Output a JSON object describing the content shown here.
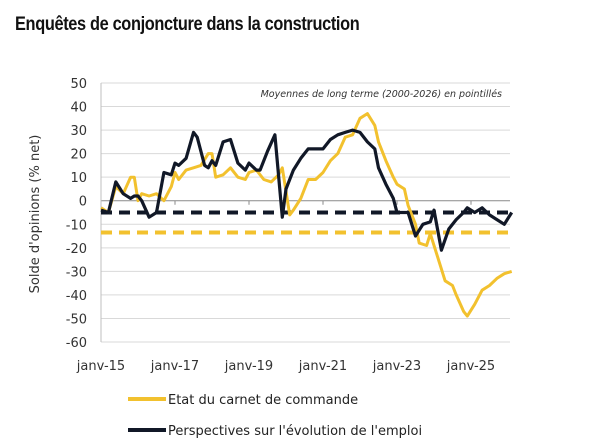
{
  "title": "Enquêtes de conjoncture dans la construction",
  "chart_data": {
    "type": "line",
    "title": "Enquêtes de conjoncture dans la construction",
    "xlabel": "",
    "ylabel": "Solde d'opinions (% net)",
    "ylim": [
      -60,
      50
    ],
    "yticks": [
      50,
      40,
      30,
      20,
      10,
      0,
      -10,
      -20,
      -30,
      -40,
      -50,
      -60
    ],
    "xlim": [
      2015.0,
      2026.2
    ],
    "xticks": [
      {
        "x": 2015,
        "label": "janv-15"
      },
      {
        "x": 2017,
        "label": "janv-17"
      },
      {
        "x": 2019,
        "label": "janv-19"
      },
      {
        "x": 2021,
        "label": "janv-21"
      },
      {
        "x": 2023,
        "label": "janv-23"
      },
      {
        "x": 2025,
        "label": "janv-25"
      }
    ],
    "grid": true,
    "annotation": "Moyennes de long terme (2000-2026) en pointillés",
    "legend_position": "bottom",
    "series": [
      {
        "name": "Etat du carnet de commande",
        "color": "#F2C12E",
        "x": [
          2015.0,
          2015.2,
          2015.4,
          2015.6,
          2015.8,
          2015.9,
          2016.0,
          2016.1,
          2016.3,
          2016.5,
          2016.7,
          2016.9,
          2017.0,
          2017.1,
          2017.3,
          2017.5,
          2017.7,
          2017.9,
          2018.0,
          2018.1,
          2018.3,
          2018.5,
          2018.7,
          2018.9,
          2019.0,
          2019.2,
          2019.4,
          2019.6,
          2019.8,
          2019.9,
          2020.1,
          2020.2,
          2020.4,
          2020.6,
          2020.8,
          2021.0,
          2021.2,
          2021.4,
          2021.6,
          2021.8,
          2022.0,
          2022.2,
          2022.4,
          2022.5,
          2022.7,
          2022.9,
          2023.0,
          2023.2,
          2023.3,
          2023.5,
          2023.6,
          2023.8,
          2023.9,
          2024.1,
          2024.3,
          2024.5,
          2024.6,
          2024.8,
          2024.9,
          2025.1,
          2025.3,
          2025.5,
          2025.7,
          2025.9,
          2026.1
        ],
        "y": [
          -3,
          -5,
          6,
          3,
          10,
          10,
          0,
          3,
          2,
          3,
          0,
          6,
          12,
          9,
          13,
          14,
          15,
          20,
          20,
          10,
          11,
          14,
          10,
          9,
          12,
          13,
          9,
          8,
          11,
          14,
          -6,
          -4,
          1,
          9,
          9,
          12,
          17,
          20,
          27,
          28,
          35,
          37,
          32,
          25,
          17,
          10,
          7,
          5,
          -2,
          -10,
          -18,
          -19,
          -14,
          -24,
          -34,
          -36,
          -40,
          -47,
          -49,
          -44,
          -38,
          -36,
          -33,
          -31,
          -30
        ]
      },
      {
        "name": "Perspectives sur l'évolution de l'emploi",
        "color": "#111827",
        "x": [
          2015.0,
          2015.2,
          2015.4,
          2015.6,
          2015.8,
          2015.9,
          2016.0,
          2016.1,
          2016.3,
          2016.5,
          2016.7,
          2016.9,
          2017.0,
          2017.1,
          2017.3,
          2017.5,
          2017.6,
          2017.8,
          2017.9,
          2018.0,
          2018.1,
          2018.3,
          2018.5,
          2018.7,
          2018.9,
          2019.0,
          2019.2,
          2019.3,
          2019.5,
          2019.7,
          2019.9,
          2020.0,
          2020.2,
          2020.4,
          2020.6,
          2020.8,
          2021.0,
          2021.2,
          2021.4,
          2021.6,
          2021.8,
          2022.0,
          2022.2,
          2022.4,
          2022.5,
          2022.7,
          2022.9,
          2023.0,
          2023.2,
          2023.3,
          2023.5,
          2023.7,
          2023.9,
          2024.0,
          2024.2,
          2024.4,
          2024.6,
          2024.8,
          2024.9,
          2025.1,
          2025.3,
          2025.5,
          2025.7,
          2025.9,
          2026.1
        ],
        "y": [
          -4,
          -5,
          8,
          3,
          1,
          2,
          2,
          0,
          -7,
          -5,
          12,
          11,
          16,
          15,
          18,
          29,
          27,
          15,
          14,
          17,
          15,
          25,
          26,
          16,
          13,
          16,
          13,
          13,
          21,
          28,
          -7,
          5,
          13,
          18,
          22,
          22,
          22,
          26,
          28,
          29,
          30,
          29,
          25,
          22,
          14,
          7,
          1,
          -5,
          -5,
          -5,
          -15,
          -10,
          -9,
          -4,
          -21,
          -12,
          -8,
          -5,
          -3,
          -5,
          -3,
          -6,
          -8,
          -10,
          -5
        ]
      }
    ],
    "reference_lines": [
      {
        "name": "Moyenne de long terme - Etat du carnet de commande",
        "y": -13.5,
        "color": "#F2C12E",
        "style": "dashed"
      },
      {
        "name": "Moyenne de long terme - Perspectives sur l'évolution de l'emploi",
        "y": -5,
        "color": "#111827",
        "style": "dashed"
      }
    ]
  },
  "legend": {
    "items": [
      {
        "label": "Etat du carnet de commande",
        "color": "#F2C12E"
      },
      {
        "label": "Perspectives sur l'évolution de l'emploi",
        "color": "#111827"
      }
    ]
  }
}
